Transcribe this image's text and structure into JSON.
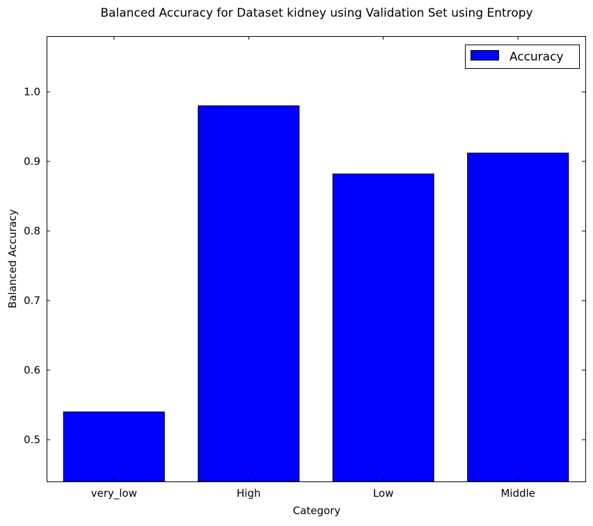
{
  "chart_data": {
    "type": "bar",
    "title": "Balanced Accuracy for Dataset kidney using Validation Set using Entropy",
    "xlabel": "Category",
    "ylabel": "Balanced Accuracy",
    "categories": [
      "very_low",
      "High",
      "Low",
      "Middle"
    ],
    "series": [
      {
        "name": "Accuracy",
        "values": [
          0.54,
          0.98,
          0.882,
          0.912
        ],
        "color": "#0000ff"
      }
    ],
    "ylim": [
      0.44,
      1.08
    ],
    "yticks": [
      0.5,
      0.6,
      0.7,
      0.8,
      0.9,
      1.0
    ],
    "ytick_labels": [
      "0.5",
      "0.6",
      "0.7",
      "0.8",
      "0.9",
      "1.0"
    ],
    "grid": false,
    "legend_position": "top-right"
  }
}
